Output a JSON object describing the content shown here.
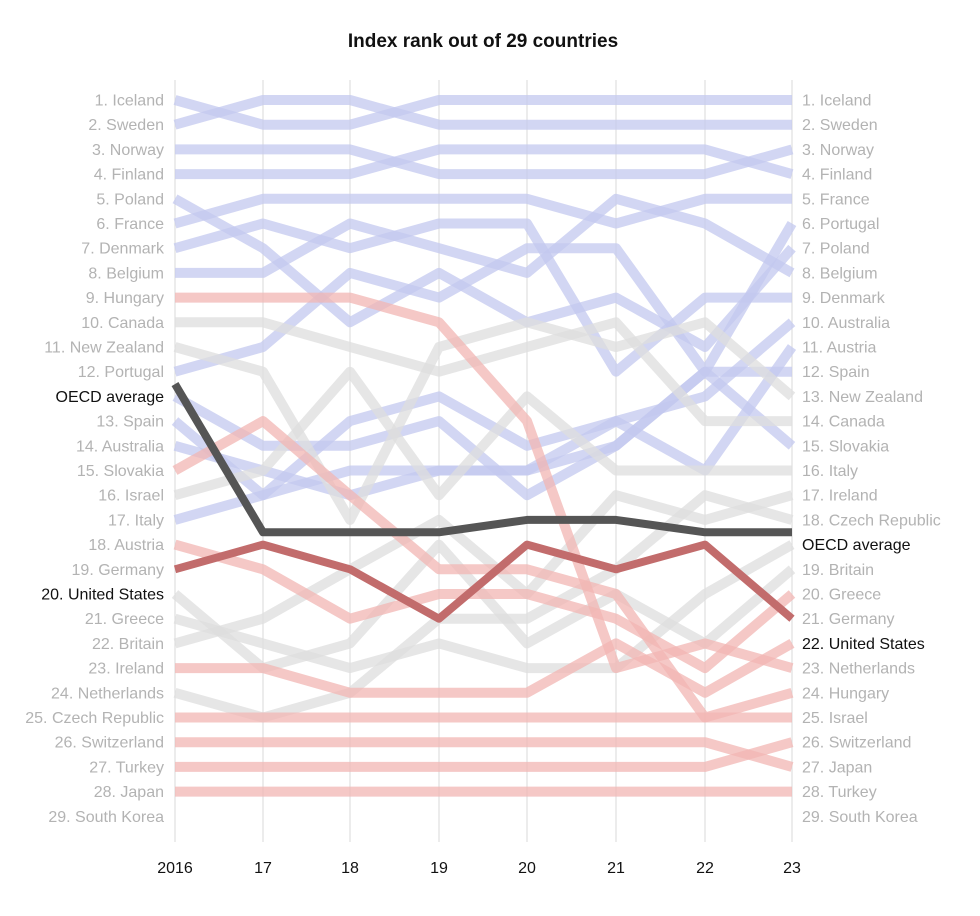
{
  "chart_data": {
    "type": "line",
    "title": "Index rank out of 29 countries",
    "x": [
      "2016",
      "17",
      "18",
      "19",
      "20",
      "21",
      "22",
      "23"
    ],
    "ylim": [
      1,
      29
    ],
    "y_inverted": true,
    "grid": "vertical",
    "colors": {
      "top_half": "#c3c8ef",
      "bottom_half": "#f2b6b3",
      "grey": "#dedede",
      "oecd": "#555555",
      "united_states": "#c26c6c",
      "muted_text": "#b3b3b3",
      "highlight_text": "#111111"
    },
    "left_labels": [
      {
        "text": "1. Iceland",
        "rank": 1
      },
      {
        "text": "2. Sweden",
        "rank": 2
      },
      {
        "text": "3. Norway",
        "rank": 3
      },
      {
        "text": "4. Finland",
        "rank": 4
      },
      {
        "text": "5. Poland",
        "rank": 5
      },
      {
        "text": "6. France",
        "rank": 6
      },
      {
        "text": "7. Denmark",
        "rank": 7
      },
      {
        "text": "8. Belgium",
        "rank": 8
      },
      {
        "text": "9. Hungary",
        "rank": 9
      },
      {
        "text": "10. Canada",
        "rank": 10
      },
      {
        "text": "11. New Zealand",
        "rank": 11
      },
      {
        "text": "12. Portugal",
        "rank": 12
      },
      {
        "text": "OECD average",
        "rank": 13,
        "highlight": true
      },
      {
        "text": "13. Spain",
        "rank": 14
      },
      {
        "text": "14. Australia",
        "rank": 15
      },
      {
        "text": "15. Slovakia",
        "rank": 16
      },
      {
        "text": "16. Israel",
        "rank": 17
      },
      {
        "text": "17. Italy",
        "rank": 18
      },
      {
        "text": "18. Austria",
        "rank": 19
      },
      {
        "text": "19. Germany",
        "rank": 20
      },
      {
        "text": "20. United States",
        "rank": 21,
        "highlight": true
      },
      {
        "text": "21. Greece",
        "rank": 22
      },
      {
        "text": "22. Britain",
        "rank": 23
      },
      {
        "text": "23. Ireland",
        "rank": 24
      },
      {
        "text": "24. Netherlands",
        "rank": 25
      },
      {
        "text": "25. Czech Republic",
        "rank": 26
      },
      {
        "text": "26. Switzerland",
        "rank": 27
      },
      {
        "text": "27. Turkey",
        "rank": 28
      },
      {
        "text": "28. Japan",
        "rank": 29
      },
      {
        "text": "29. South Korea",
        "rank": 30
      }
    ],
    "right_labels": [
      {
        "text": "1. Iceland",
        "rank": 1
      },
      {
        "text": "2. Sweden",
        "rank": 2
      },
      {
        "text": "3. Norway",
        "rank": 3
      },
      {
        "text": "4. Finland",
        "rank": 4
      },
      {
        "text": "5. France",
        "rank": 5
      },
      {
        "text": "6. Portugal",
        "rank": 6
      },
      {
        "text": "7. Poland",
        "rank": 7
      },
      {
        "text": "8. Belgium",
        "rank": 8
      },
      {
        "text": "9. Denmark",
        "rank": 9
      },
      {
        "text": "10. Australia",
        "rank": 10
      },
      {
        "text": "11. Austria",
        "rank": 11
      },
      {
        "text": "12. Spain",
        "rank": 12
      },
      {
        "text": "13. New Zealand",
        "rank": 13
      },
      {
        "text": "14. Canada",
        "rank": 14
      },
      {
        "text": "15. Slovakia",
        "rank": 15
      },
      {
        "text": "16. Italy",
        "rank": 16
      },
      {
        "text": "17. Ireland",
        "rank": 17
      },
      {
        "text": "18. Czech Republic",
        "rank": 18
      },
      {
        "text": "OECD average",
        "rank": 19,
        "highlight": true
      },
      {
        "text": "19. Britain",
        "rank": 20
      },
      {
        "text": "20. Greece",
        "rank": 21
      },
      {
        "text": "21. Germany",
        "rank": 22
      },
      {
        "text": "22. United States",
        "rank": 23,
        "highlight": true
      },
      {
        "text": "23. Netherlands",
        "rank": 24
      },
      {
        "text": "24. Hungary",
        "rank": 25
      },
      {
        "text": "25. Israel",
        "rank": 26
      },
      {
        "text": "26. Switzerland",
        "rank": 27
      },
      {
        "text": "27. Japan",
        "rank": 28
      },
      {
        "text": "28. Turkey",
        "rank": 29
      },
      {
        "text": "29. South Korea",
        "rank": 30
      }
    ],
    "series": [
      {
        "name": "Iceland",
        "tone": "top_half",
        "values": [
          1,
          2,
          2,
          1,
          1,
          1,
          1,
          1
        ]
      },
      {
        "name": "Sweden",
        "tone": "top_half",
        "values": [
          2,
          1,
          1,
          2,
          2,
          2,
          2,
          2
        ]
      },
      {
        "name": "Norway",
        "tone": "top_half",
        "values": [
          3,
          3,
          3,
          4,
          4,
          4,
          4,
          3
        ]
      },
      {
        "name": "Finland",
        "tone": "top_half",
        "values": [
          4,
          4,
          4,
          3,
          3,
          3,
          3,
          4
        ]
      },
      {
        "name": "Poland",
        "tone": "top_half",
        "values": [
          5,
          7,
          10,
          8,
          10,
          9,
          11,
          7
        ]
      },
      {
        "name": "France",
        "tone": "top_half",
        "values": [
          6,
          5,
          5,
          5,
          5,
          6,
          5,
          5
        ]
      },
      {
        "name": "Denmark",
        "tone": "top_half",
        "values": [
          7,
          6,
          7,
          6,
          6,
          12,
          9,
          9
        ]
      },
      {
        "name": "Belgium",
        "tone": "top_half",
        "values": [
          8,
          8,
          6,
          7,
          8,
          5,
          6,
          8
        ]
      },
      {
        "name": "Portugal",
        "tone": "top_half",
        "values": [
          12,
          11,
          8,
          9,
          7,
          7,
          12,
          6
        ]
      },
      {
        "name": "Australia",
        "tone": "top_half",
        "values": [
          14,
          17,
          14,
          13,
          15,
          14,
          13,
          10
        ]
      },
      {
        "name": "Austria",
        "tone": "top_half",
        "values": [
          18,
          17,
          16,
          16,
          16,
          14,
          16,
          11
        ]
      },
      {
        "name": "Spain",
        "tone": "top_half",
        "values": [
          13,
          15,
          15,
          14,
          17,
          15,
          12,
          12
        ]
      },
      {
        "name": "Slovakia",
        "tone": "top_half",
        "values": [
          15,
          16,
          17,
          16,
          16,
          15,
          12,
          15
        ]
      },
      {
        "name": "Canada",
        "tone": "grey",
        "values": [
          10,
          10,
          11,
          12,
          11,
          10,
          14,
          14
        ]
      },
      {
        "name": "New Zealand",
        "tone": "grey",
        "values": [
          11,
          12,
          18,
          11,
          10,
          11,
          10,
          13
        ]
      },
      {
        "name": "Italy",
        "tone": "grey",
        "values": [
          17,
          16,
          12,
          17,
          13,
          16,
          16,
          16
        ]
      },
      {
        "name": "Ireland",
        "tone": "grey",
        "values": [
          23,
          22,
          20,
          18,
          21,
          17,
          18,
          17
        ]
      },
      {
        "name": "Czech Republic",
        "tone": "grey",
        "values": [
          25,
          26,
          25,
          22,
          22,
          20,
          17,
          18
        ]
      },
      {
        "name": "Britain",
        "tone": "grey",
        "values": [
          22,
          23,
          24,
          23,
          24,
          24,
          21,
          19
        ]
      },
      {
        "name": "Greece",
        "tone": "grey",
        "values": [
          21,
          24,
          23,
          19,
          23,
          21,
          23,
          20
        ]
      },
      {
        "name": "Germany",
        "tone": "bottom_half",
        "values": [
          19,
          20,
          22,
          21,
          21,
          22,
          24,
          21
        ]
      },
      {
        "name": "Netherlands",
        "tone": "bottom_half",
        "values": [
          24,
          24,
          25,
          25,
          25,
          23,
          25,
          23
        ]
      },
      {
        "name": "Hungary",
        "tone": "bottom_half",
        "values": [
          9,
          9,
          9,
          10,
          14,
          24,
          23,
          24
        ]
      },
      {
        "name": "Israel",
        "tone": "bottom_half",
        "values": [
          16,
          14,
          17,
          20,
          20,
          21,
          26,
          25
        ]
      },
      {
        "name": "Switzerland",
        "tone": "bottom_half",
        "values": [
          26,
          26,
          26,
          26,
          26,
          26,
          26,
          26
        ]
      },
      {
        "name": "Japan",
        "tone": "bottom_half",
        "values": [
          28,
          28,
          28,
          28,
          28,
          28,
          28,
          27
        ]
      },
      {
        "name": "Turkey",
        "tone": "bottom_half",
        "values": [
          27,
          27,
          27,
          27,
          27,
          27,
          27,
          28
        ]
      },
      {
        "name": "South Korea",
        "tone": "bottom_half",
        "values": [
          29,
          29,
          29,
          29,
          29,
          29,
          29,
          29
        ]
      },
      {
        "name": "OECD average",
        "tone": "oecd",
        "values": [
          12.5,
          18.5,
          18.5,
          18.5,
          18,
          18,
          18.5,
          18.5
        ]
      },
      {
        "name": "United States",
        "tone": "united_states",
        "values": [
          20,
          19,
          20,
          22,
          19,
          20,
          19,
          22
        ]
      }
    ]
  }
}
